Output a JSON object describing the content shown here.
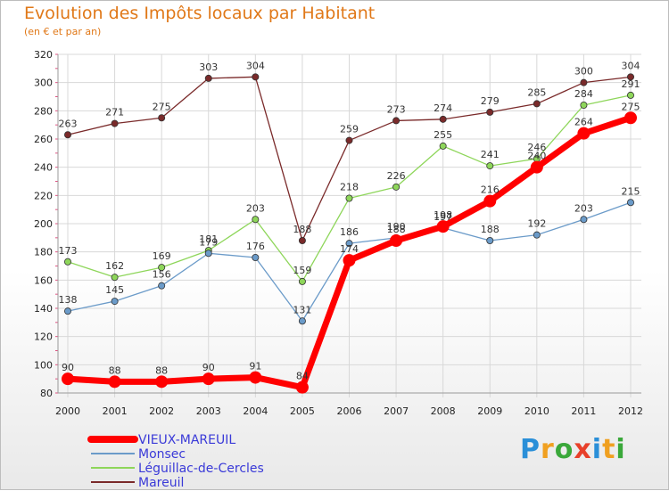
{
  "title": "Evolution des Impôts locaux par Habitant",
  "subtitle": "(en € et par an)",
  "logo": "Proxiti",
  "chart_data": {
    "type": "line",
    "title": "Evolution des Impôts locaux par Habitant",
    "subtitle": "(en € et par an)",
    "xlabel": "",
    "ylabel": "",
    "x": [
      2000,
      2001,
      2002,
      2003,
      2004,
      2005,
      2006,
      2007,
      2008,
      2009,
      2010,
      2011,
      2012
    ],
    "ylim": [
      80,
      320
    ],
    "yticks": [
      80,
      100,
      120,
      140,
      160,
      180,
      200,
      220,
      240,
      260,
      280,
      300,
      320
    ],
    "grid": true,
    "legend_position": "bottom-left",
    "series": [
      {
        "name": "VIEUX-MAREUIL",
        "color": "#ff0000",
        "values": [
          90,
          88,
          88,
          90,
          91,
          84,
          174,
          188,
          198,
          216,
          240,
          264,
          275
        ]
      },
      {
        "name": "Monsec",
        "color": "#6b9bc9",
        "values": [
          138,
          145,
          156,
          179,
          176,
          131,
          186,
          190,
          197,
          188,
          192,
          203,
          215
        ]
      },
      {
        "name": "Léguillac-de-Cercles",
        "color": "#8ed65a",
        "values": [
          173,
          162,
          169,
          181,
          203,
          159,
          218,
          226,
          255,
          241,
          246,
          284,
          291
        ]
      },
      {
        "name": "Mareuil",
        "color": "#7a2a2a",
        "values": [
          263,
          271,
          275,
          303,
          304,
          188,
          259,
          273,
          274,
          279,
          285,
          300,
          304
        ]
      }
    ]
  }
}
